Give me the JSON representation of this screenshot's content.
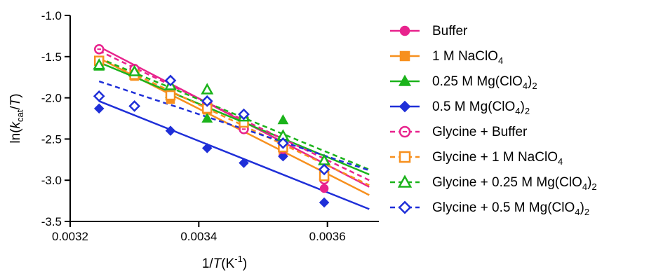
{
  "chart_data": {
    "type": "scatter",
    "xlabel": {
      "pre": "1/",
      "italic": "T",
      "post": "(K",
      "sup": "-1",
      "end": ")"
    },
    "ylabel": {
      "pre": "ln(",
      "italic": "k",
      "sub": "cat",
      "mid": "/",
      "italic2": "T",
      "end": ")"
    },
    "xlim": [
      0.0032,
      0.00368
    ],
    "ylim": [
      -3.5,
      -1.0
    ],
    "xticks": [
      "0.0032",
      "0.0034",
      "0.0036"
    ],
    "xtick_values": [
      0.0032,
      0.0034,
      0.0036
    ],
    "yticks": [
      "-1.0",
      "-1.5",
      "-2.0",
      "-2.5",
      "-3.0",
      "-3.5"
    ],
    "ytick_values": [
      -1.0,
      -1.5,
      -2.0,
      -2.5,
      -3.0,
      -3.5
    ],
    "grid": false,
    "legend_position": "right",
    "series": [
      {
        "name": "Buffer",
        "color": "#e8238d",
        "marker": "circle",
        "filled": true,
        "dashed": false,
        "points": [
          [
            0.003245,
            -1.42
          ],
          [
            0.0033,
            -1.64
          ],
          [
            0.003356,
            -1.88
          ],
          [
            0.003413,
            -2.06
          ],
          [
            0.00347,
            -2.36
          ],
          [
            0.003531,
            -2.7
          ],
          [
            0.003595,
            -3.1
          ]
        ],
        "fit": [
          [
            0.003245,
            -1.38
          ],
          [
            0.003665,
            -3.08
          ]
        ]
      },
      {
        "name": "1 M NaClO",
        "name_sub": "4",
        "color": "#f7901e",
        "marker": "square",
        "filled": true,
        "dashed": false,
        "points": [
          [
            0.003245,
            -1.61
          ],
          [
            0.0033,
            -1.74
          ],
          [
            0.003356,
            -2.02
          ],
          [
            0.003413,
            -2.15
          ],
          [
            0.00347,
            -2.33
          ],
          [
            0.003531,
            -2.63
          ],
          [
            0.003595,
            -2.92
          ]
        ],
        "fit": [
          [
            0.003245,
            -1.52
          ],
          [
            0.003665,
            -3.18
          ]
        ]
      },
      {
        "name": "0.25 M Mg(ClO",
        "name_sub": "4",
        "name_end": ")",
        "name_sub2": "2",
        "color": "#1bb31b",
        "marker": "triangle",
        "filled": true,
        "dashed": false,
        "points": [
          [
            0.003245,
            -1.62
          ],
          [
            0.0033,
            -1.7
          ],
          [
            0.003356,
            -1.95
          ],
          [
            0.003413,
            -2.25
          ],
          [
            0.00347,
            -2.2
          ],
          [
            0.003531,
            -2.27
          ],
          [
            0.003595,
            -2.75
          ]
        ],
        "fit": [
          [
            0.003245,
            -1.57
          ],
          [
            0.003665,
            -2.93
          ]
        ]
      },
      {
        "name": "0.5 M Mg(ClO",
        "name_sub": "4",
        "name_end": ")",
        "name_sub2": "2",
        "color": "#1f2fd8",
        "marker": "diamond",
        "filled": true,
        "dashed": false,
        "points": [
          [
            0.003245,
            -2.13
          ],
          [
            0.0033,
            -2.1
          ],
          [
            0.003356,
            -2.4
          ],
          [
            0.003413,
            -2.61
          ],
          [
            0.00347,
            -2.79
          ],
          [
            0.003531,
            -2.71
          ],
          [
            0.003595,
            -3.27
          ]
        ],
        "fit": [
          [
            0.003245,
            -2.04
          ],
          [
            0.003665,
            -3.35
          ]
        ]
      },
      {
        "name": "Glycine + Buffer",
        "color": "#e8238d",
        "marker": "circle",
        "filled": false,
        "dashed": true,
        "points": [
          [
            0.003245,
            -1.41
          ],
          [
            0.0033,
            -1.65
          ],
          [
            0.003356,
            -1.9
          ],
          [
            0.003413,
            -2.07
          ],
          [
            0.00347,
            -2.38
          ],
          [
            0.003531,
            -2.62
          ],
          [
            0.003595,
            -2.99
          ]
        ],
        "fit": [
          [
            0.003245,
            -1.43
          ],
          [
            0.003665,
            -3.0
          ]
        ]
      },
      {
        "name": "Glycine + 1 M NaClO",
        "name_sub": "4",
        "color": "#f7901e",
        "marker": "square",
        "filled": false,
        "dashed": true,
        "points": [
          [
            0.003245,
            -1.55
          ],
          [
            0.0033,
            -1.72
          ],
          [
            0.003356,
            -1.97
          ],
          [
            0.003413,
            -2.13
          ],
          [
            0.00347,
            -2.3
          ],
          [
            0.003531,
            -2.6
          ],
          [
            0.003595,
            -2.95
          ]
        ],
        "fit": [
          [
            0.003245,
            -1.51
          ],
          [
            0.003665,
            -3.06
          ]
        ]
      },
      {
        "name": "Glycine + 0.25 M Mg(ClO",
        "name_sub": "4",
        "name_end": ")",
        "name_sub2": "2",
        "color": "#1bb31b",
        "marker": "triangle",
        "filled": false,
        "dashed": true,
        "points": [
          [
            0.003245,
            -1.6
          ],
          [
            0.0033,
            -1.68
          ],
          [
            0.003356,
            -1.85
          ],
          [
            0.003413,
            -1.9
          ],
          [
            0.00347,
            -2.23
          ],
          [
            0.003531,
            -2.46
          ],
          [
            0.003595,
            -2.76
          ]
        ],
        "fit": [
          [
            0.003245,
            -1.52
          ],
          [
            0.003665,
            -2.87
          ]
        ]
      },
      {
        "name": "Glycine + 0.5 M Mg(ClO",
        "name_sub": "4",
        "name_end": ")",
        "name_sub2": "2",
        "color": "#1f2fd8",
        "marker": "diamond",
        "filled": false,
        "dashed": true,
        "points": [
          [
            0.003245,
            -1.98
          ],
          [
            0.0033,
            -2.1
          ],
          [
            0.003356,
            -1.79
          ],
          [
            0.003413,
            -2.04
          ],
          [
            0.00347,
            -2.2
          ],
          [
            0.003531,
            -2.55
          ],
          [
            0.003595,
            -2.87
          ]
        ],
        "fit": [
          [
            0.003245,
            -1.8
          ],
          [
            0.003665,
            -2.88
          ]
        ]
      }
    ]
  }
}
